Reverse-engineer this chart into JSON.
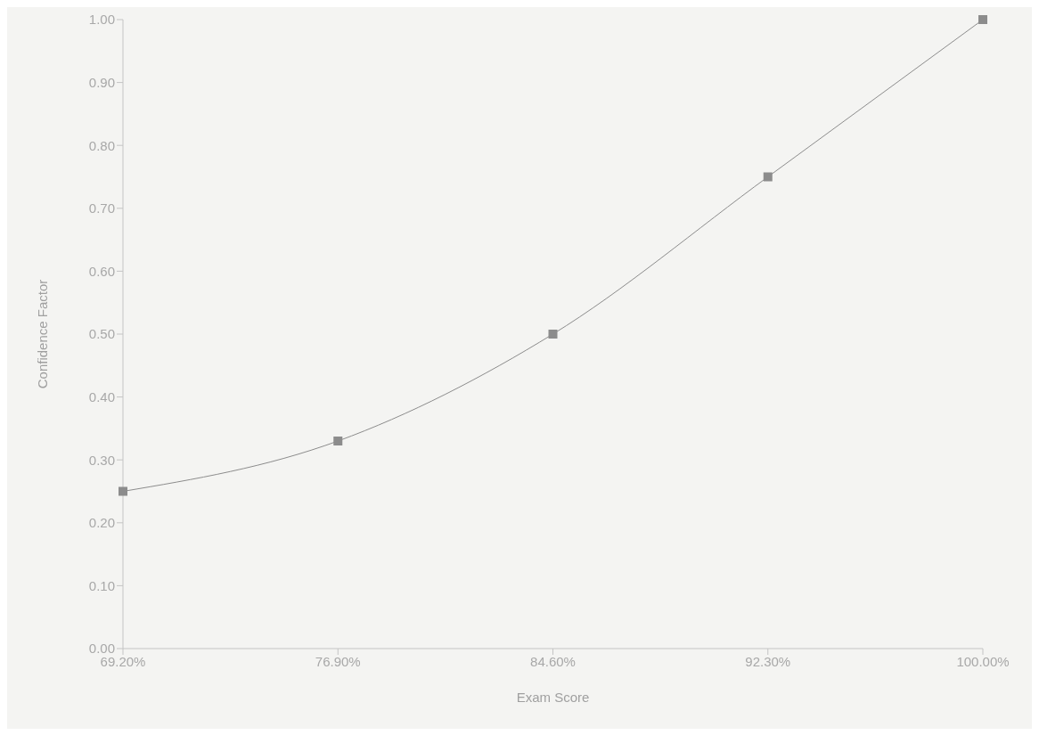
{
  "chart_data": {
    "type": "line",
    "xlabel": "Exam Score",
    "ylabel": "Confidence Factor",
    "x": [
      69.2,
      76.9,
      84.6,
      92.3,
      100
    ],
    "series": [
      {
        "color": "#8c8c8c",
        "values": [
          0.25,
          0.33,
          0.5,
          0.75,
          1.0
        ]
      }
    ],
    "xlim": [
      69.2,
      100
    ],
    "xticks": [
      {
        "value": 69.2,
        "label": "69.20%"
      },
      {
        "value": 76.9,
        "label": "76.90%"
      },
      {
        "value": 84.6,
        "label": "84.60%"
      },
      {
        "value": 92.3,
        "label": "92.30%"
      },
      {
        "value": 100,
        "label": "100.00%"
      }
    ],
    "ylim": [
      0,
      1
    ],
    "yticks": [
      {
        "value": 0,
        "label": "0.00"
      },
      {
        "value": 0.1,
        "label": "0.10"
      },
      {
        "value": 0.2,
        "label": "0.20"
      },
      {
        "value": 0.3,
        "label": "0.30"
      },
      {
        "value": 0.4,
        "label": "0.40"
      },
      {
        "value": 0.5,
        "label": "0.50"
      },
      {
        "value": 0.6,
        "label": "0.60"
      },
      {
        "value": 0.7,
        "label": "0.70"
      },
      {
        "value": 0.8,
        "label": "0.80"
      },
      {
        "value": 0.9,
        "label": "0.90"
      },
      {
        "value": 1,
        "label": "1.00"
      }
    ],
    "grid": false,
    "legend": false,
    "marker": "square",
    "line_style": "solid"
  }
}
